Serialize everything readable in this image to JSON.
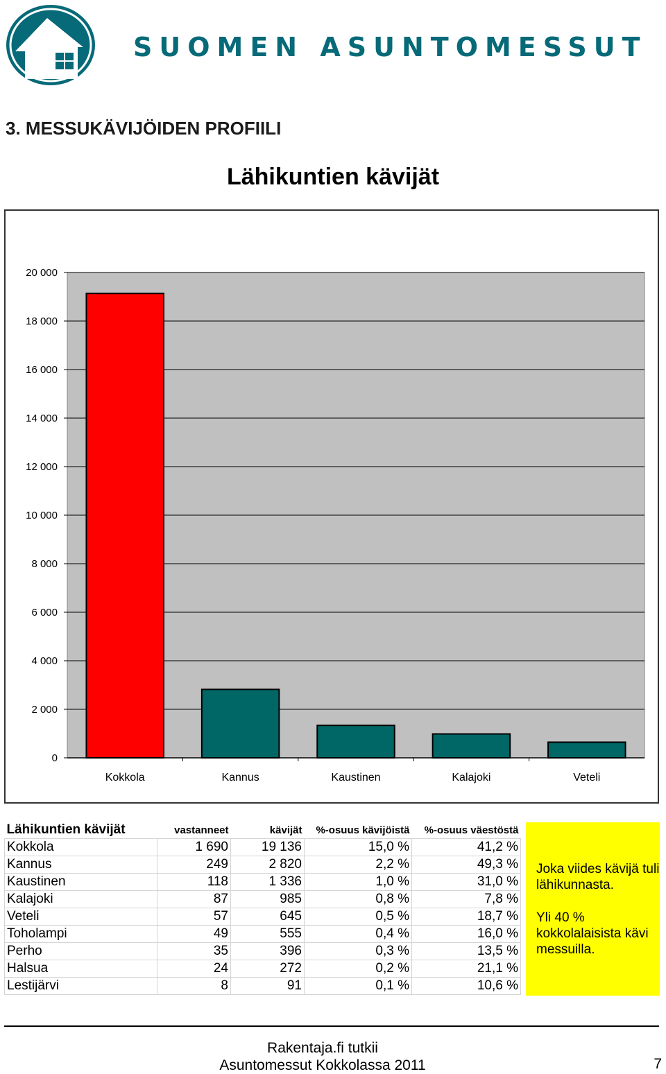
{
  "header": {
    "brand": "SUOMEN ASUNTOMESSUT",
    "logo_icon": "house-logo-icon",
    "brand_color": "#066a78"
  },
  "section_title": "3. MESSUKÄVIJÖIDEN PROFIILI",
  "chart_data": {
    "type": "bar",
    "title": "Lähikuntien kävijät",
    "categories": [
      "Kokkola",
      "Kannus",
      "Kaustinen",
      "Kalajoki",
      "Veteli"
    ],
    "values": [
      19136,
      2820,
      1336,
      985,
      645
    ],
    "ylim": [
      0,
      20000
    ],
    "y_ticks": [
      "0",
      "2 000",
      "4 000",
      "6 000",
      "8 000",
      "10 000",
      "12 000",
      "14 000",
      "16 000",
      "18 000",
      "20 000"
    ],
    "xlabel": "",
    "ylabel": "",
    "grid": true,
    "colors": {
      "highlight": "#ff0000",
      "default": "#006666",
      "plot_bg": "#c0c0c0"
    }
  },
  "table": {
    "title": "Lähikuntien kävijät",
    "headers": [
      "vastanneet",
      "kävijät",
      "%-osuus kävijöistä",
      "%-osuus väestöstä"
    ],
    "rows": [
      [
        "Kokkola",
        "1 690",
        "19 136",
        "15,0 %",
        "41,2 %"
      ],
      [
        "Kannus",
        "249",
        "2 820",
        "2,2 %",
        "49,3 %"
      ],
      [
        "Kaustinen",
        "118",
        "1 336",
        "1,0 %",
        "31,0 %"
      ],
      [
        "Kalajoki",
        "87",
        "985",
        "0,8 %",
        "7,8 %"
      ],
      [
        "Veteli",
        "57",
        "645",
        "0,5 %",
        "18,7 %"
      ],
      [
        "Toholampi",
        "49",
        "555",
        "0,4 %",
        "16,0 %"
      ],
      [
        "Perho",
        "35",
        "396",
        "0,3 %",
        "13,5 %"
      ],
      [
        "Halsua",
        "24",
        "272",
        "0,2 %",
        "21,1 %"
      ],
      [
        "Lestijärvi",
        "8",
        "91",
        "0,1 %",
        "10,6 %"
      ]
    ]
  },
  "note": {
    "line1": "Joka viides kävijä tuli lähikunnasta.",
    "line2": "Yli 40 % kokkolalaisista kävi messuilla.",
    "color": "#ffff00"
  },
  "footer": {
    "line1": "Rakentaja.fi tutkii",
    "line2": "Asuntomessut Kokkolassa 2011",
    "page": "7"
  }
}
